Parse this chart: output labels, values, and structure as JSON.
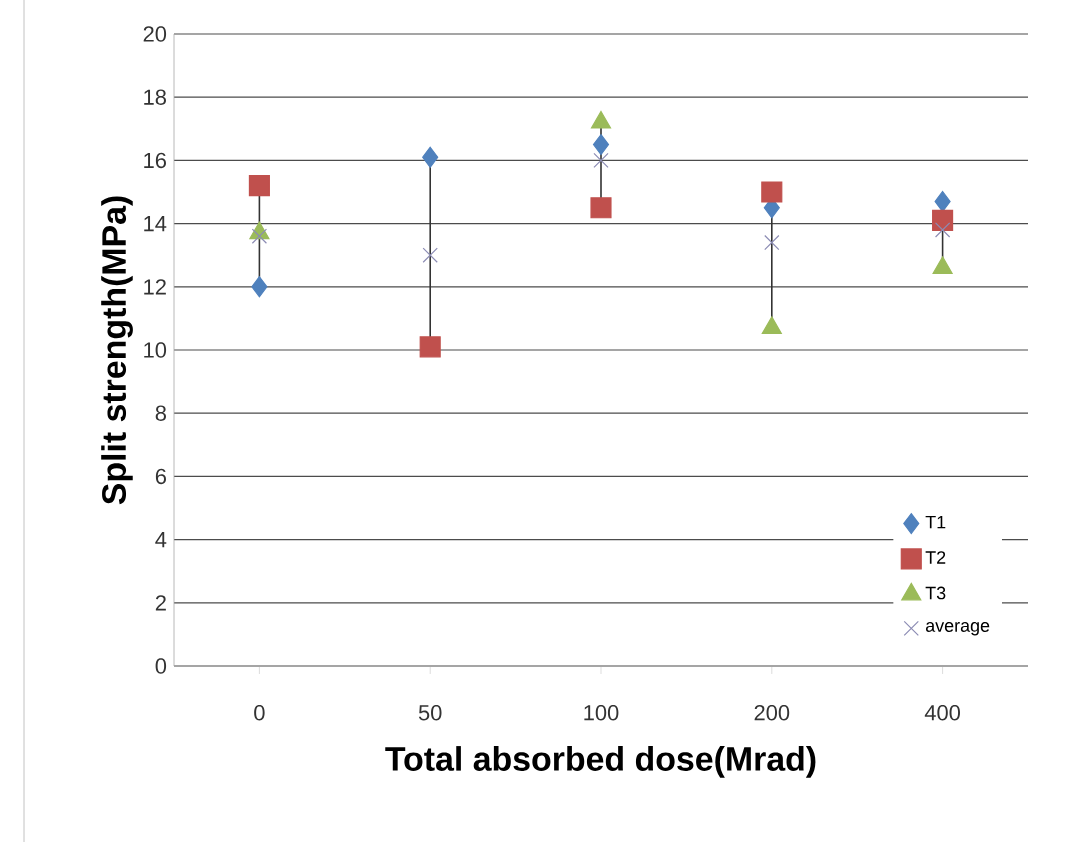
{
  "chart_data": {
    "type": "scatter",
    "xlabel": "Total absorbed dose(Mrad)",
    "ylabel": "Split strength(MPa)",
    "categories": [
      "0",
      "50",
      "100",
      "200",
      "400"
    ],
    "series": [
      {
        "name": "T1",
        "color": "#4f81bd",
        "marker": "diamond",
        "values": [
          12,
          16.1,
          16.5,
          14.5,
          14.7
        ]
      },
      {
        "name": "T2",
        "color": "#c0504d",
        "marker": "square",
        "values": [
          15.2,
          10.1,
          14.5,
          15,
          14.1
        ]
      },
      {
        "name": "T3",
        "color": "#9bbb59",
        "marker": "triangle",
        "values": [
          13.7,
          null,
          17.2,
          10.7,
          12.6
        ]
      },
      {
        "name": "average",
        "color": "#8c8cb4",
        "marker": "cross",
        "values": [
          13.6,
          13,
          16,
          13.4,
          13.8
        ]
      }
    ],
    "ylim": [
      0,
      20
    ],
    "yticks": [
      0,
      2,
      4,
      6,
      8,
      10,
      12,
      14,
      16,
      18,
      20
    ],
    "grid": "y",
    "legend": "bottom right"
  }
}
